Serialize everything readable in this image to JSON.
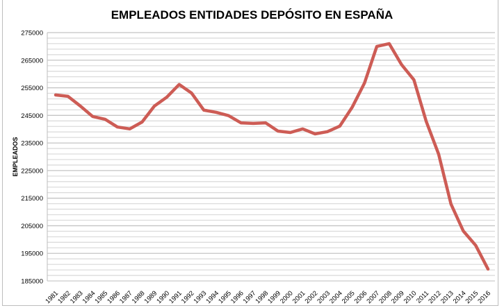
{
  "chart_data": {
    "type": "line",
    "title": "EMPLEADOS ENTIDADES DEPÓSITO EN ESPAÑA",
    "xlabel": "",
    "ylabel": "EMPLEADOS",
    "ylim": [
      185000,
      275000
    ],
    "yticks": [
      185000,
      195000,
      205000,
      215000,
      225000,
      235000,
      245000,
      255000,
      265000,
      275000
    ],
    "minor_grid_step": 2000,
    "grid": true,
    "line_color": "#cd5c55",
    "categories": [
      "1981",
      "1982",
      "1983",
      "1984",
      "1985",
      "1986",
      "1987",
      "1988",
      "1989",
      "1990",
      "1991",
      "1992",
      "1993",
      "1994",
      "1995",
      "1996",
      "1997",
      "1998",
      "1999",
      "2000",
      "2001",
      "2002",
      "2003",
      "2004",
      "2005",
      "2006",
      "2007",
      "2008",
      "2009",
      "2010",
      "2011",
      "2012",
      "2013",
      "2014",
      "2015",
      "2016"
    ],
    "series": [
      {
        "values": [
          252400,
          251900,
          248400,
          244600,
          243600,
          240800,
          240100,
          242600,
          248400,
          251600,
          256200,
          253100,
          246900,
          246100,
          244900,
          242300,
          242100,
          242300,
          239300,
          238800,
          240100,
          238300,
          239100,
          241100,
          247900,
          256700,
          270000,
          271000,
          263400,
          257900,
          242800,
          231000,
          212900,
          203100,
          197900,
          189300
        ]
      }
    ]
  }
}
